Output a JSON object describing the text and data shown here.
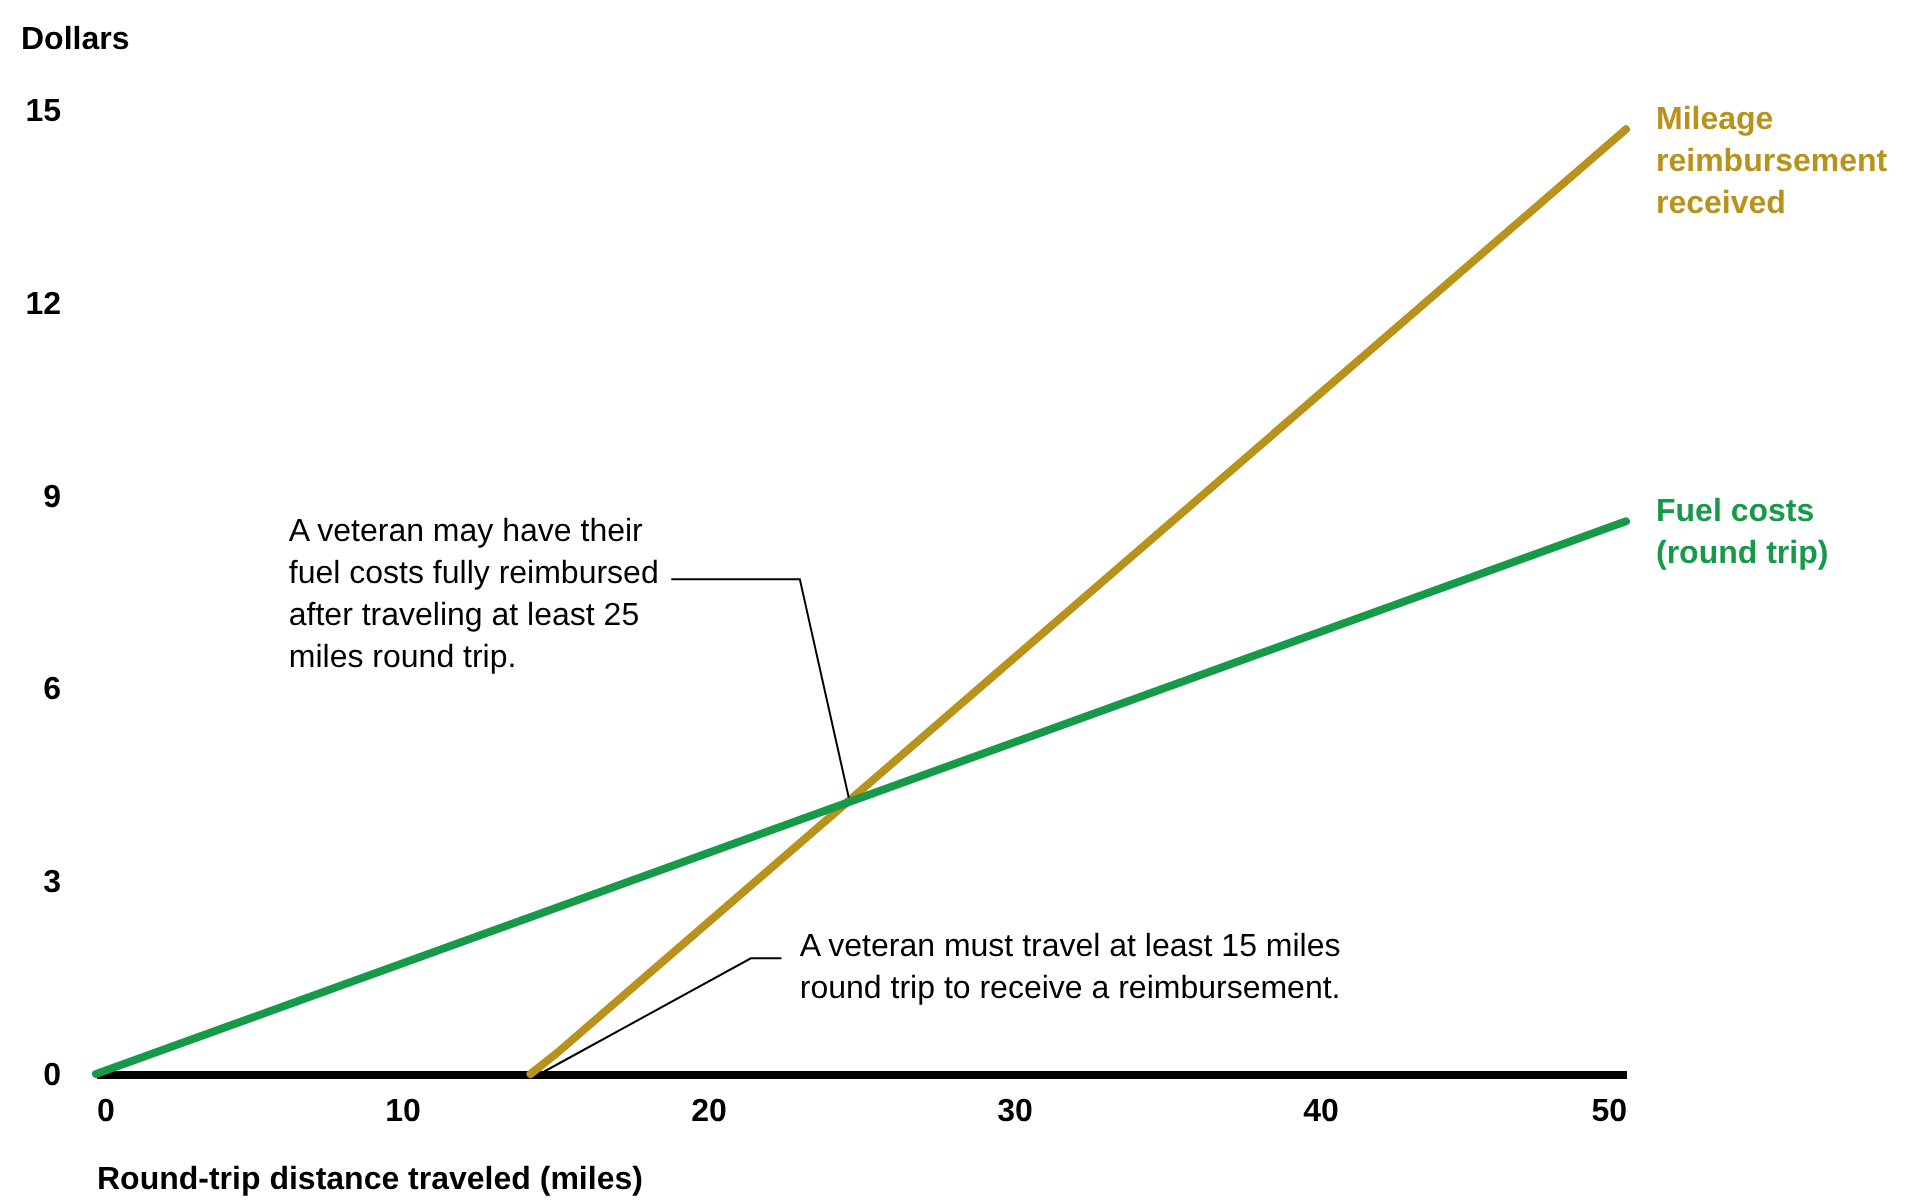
{
  "chart_data": {
    "type": "line",
    "ylabel": "Dollars",
    "xlabel": "Round-trip distance traveled (miles)",
    "xlim": [
      0,
      50
    ],
    "xticks": [
      0,
      10,
      20,
      30,
      40,
      50
    ],
    "ylim": [
      0,
      15
    ],
    "yticks": [
      0,
      3,
      6,
      9,
      12,
      15
    ],
    "grid": false,
    "legend": false,
    "marker": "none",
    "line_style": "solid",
    "series": [
      {
        "name": "Mileage reimbursement received",
        "color": "#b8921a",
        "x": [
          14.2,
          15,
          50
        ],
        "values": [
          0,
          0.3,
          14.7
        ]
      },
      {
        "name": "Fuel costs (round trip)",
        "color": "#17994a",
        "x": [
          0,
          50
        ],
        "values": [
          0,
          8.6
        ]
      }
    ],
    "annotations": [
      {
        "text": "A veteran may have their fuel costs fully reimbursed after traveling at least 25 miles round trip.",
        "x": 24.6,
        "y": 4.3
      },
      {
        "text": "A veteran must travel at least 15 miles round trip to receive a reimbursement.",
        "x": 14.5,
        "y": 0
      }
    ]
  }
}
